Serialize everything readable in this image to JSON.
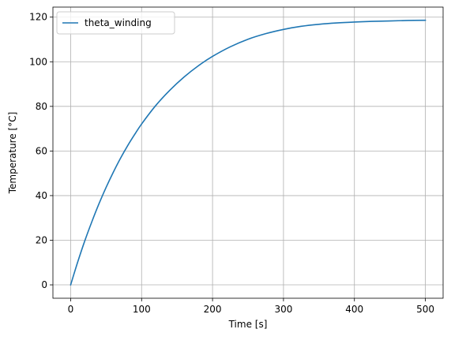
{
  "chart_data": {
    "type": "line",
    "title": "",
    "xlabel": "Time [s]",
    "ylabel": "Temperature [°C]",
    "xlim": [
      -25,
      525
    ],
    "ylim": [
      -6,
      124.5
    ],
    "xticks": [
      0,
      100,
      200,
      300,
      400,
      500
    ],
    "yticks": [
      0,
      20,
      40,
      60,
      80,
      100,
      120
    ],
    "grid": true,
    "legend_position": "top-left",
    "series": [
      {
        "name": "theta_winding",
        "color": "#1f77b4",
        "x": [
          0,
          10,
          20,
          30,
          40,
          50,
          60,
          70,
          80,
          90,
          100,
          120,
          140,
          160,
          180,
          200,
          225,
          250,
          275,
          300,
          325,
          350,
          375,
          400,
          425,
          450,
          475,
          500
        ],
        "y": [
          0,
          10.3,
          19.8,
          28.4,
          36.4,
          43.7,
          50.4,
          56.6,
          62.2,
          67.3,
          72.1,
          80.4,
          87.3,
          93.2,
          98.2,
          102.4,
          106.7,
          110.1,
          112.6,
          114.5,
          115.9,
          116.8,
          117.4,
          117.8,
          118.1,
          118.3,
          118.5,
          118.6
        ]
      }
    ]
  }
}
